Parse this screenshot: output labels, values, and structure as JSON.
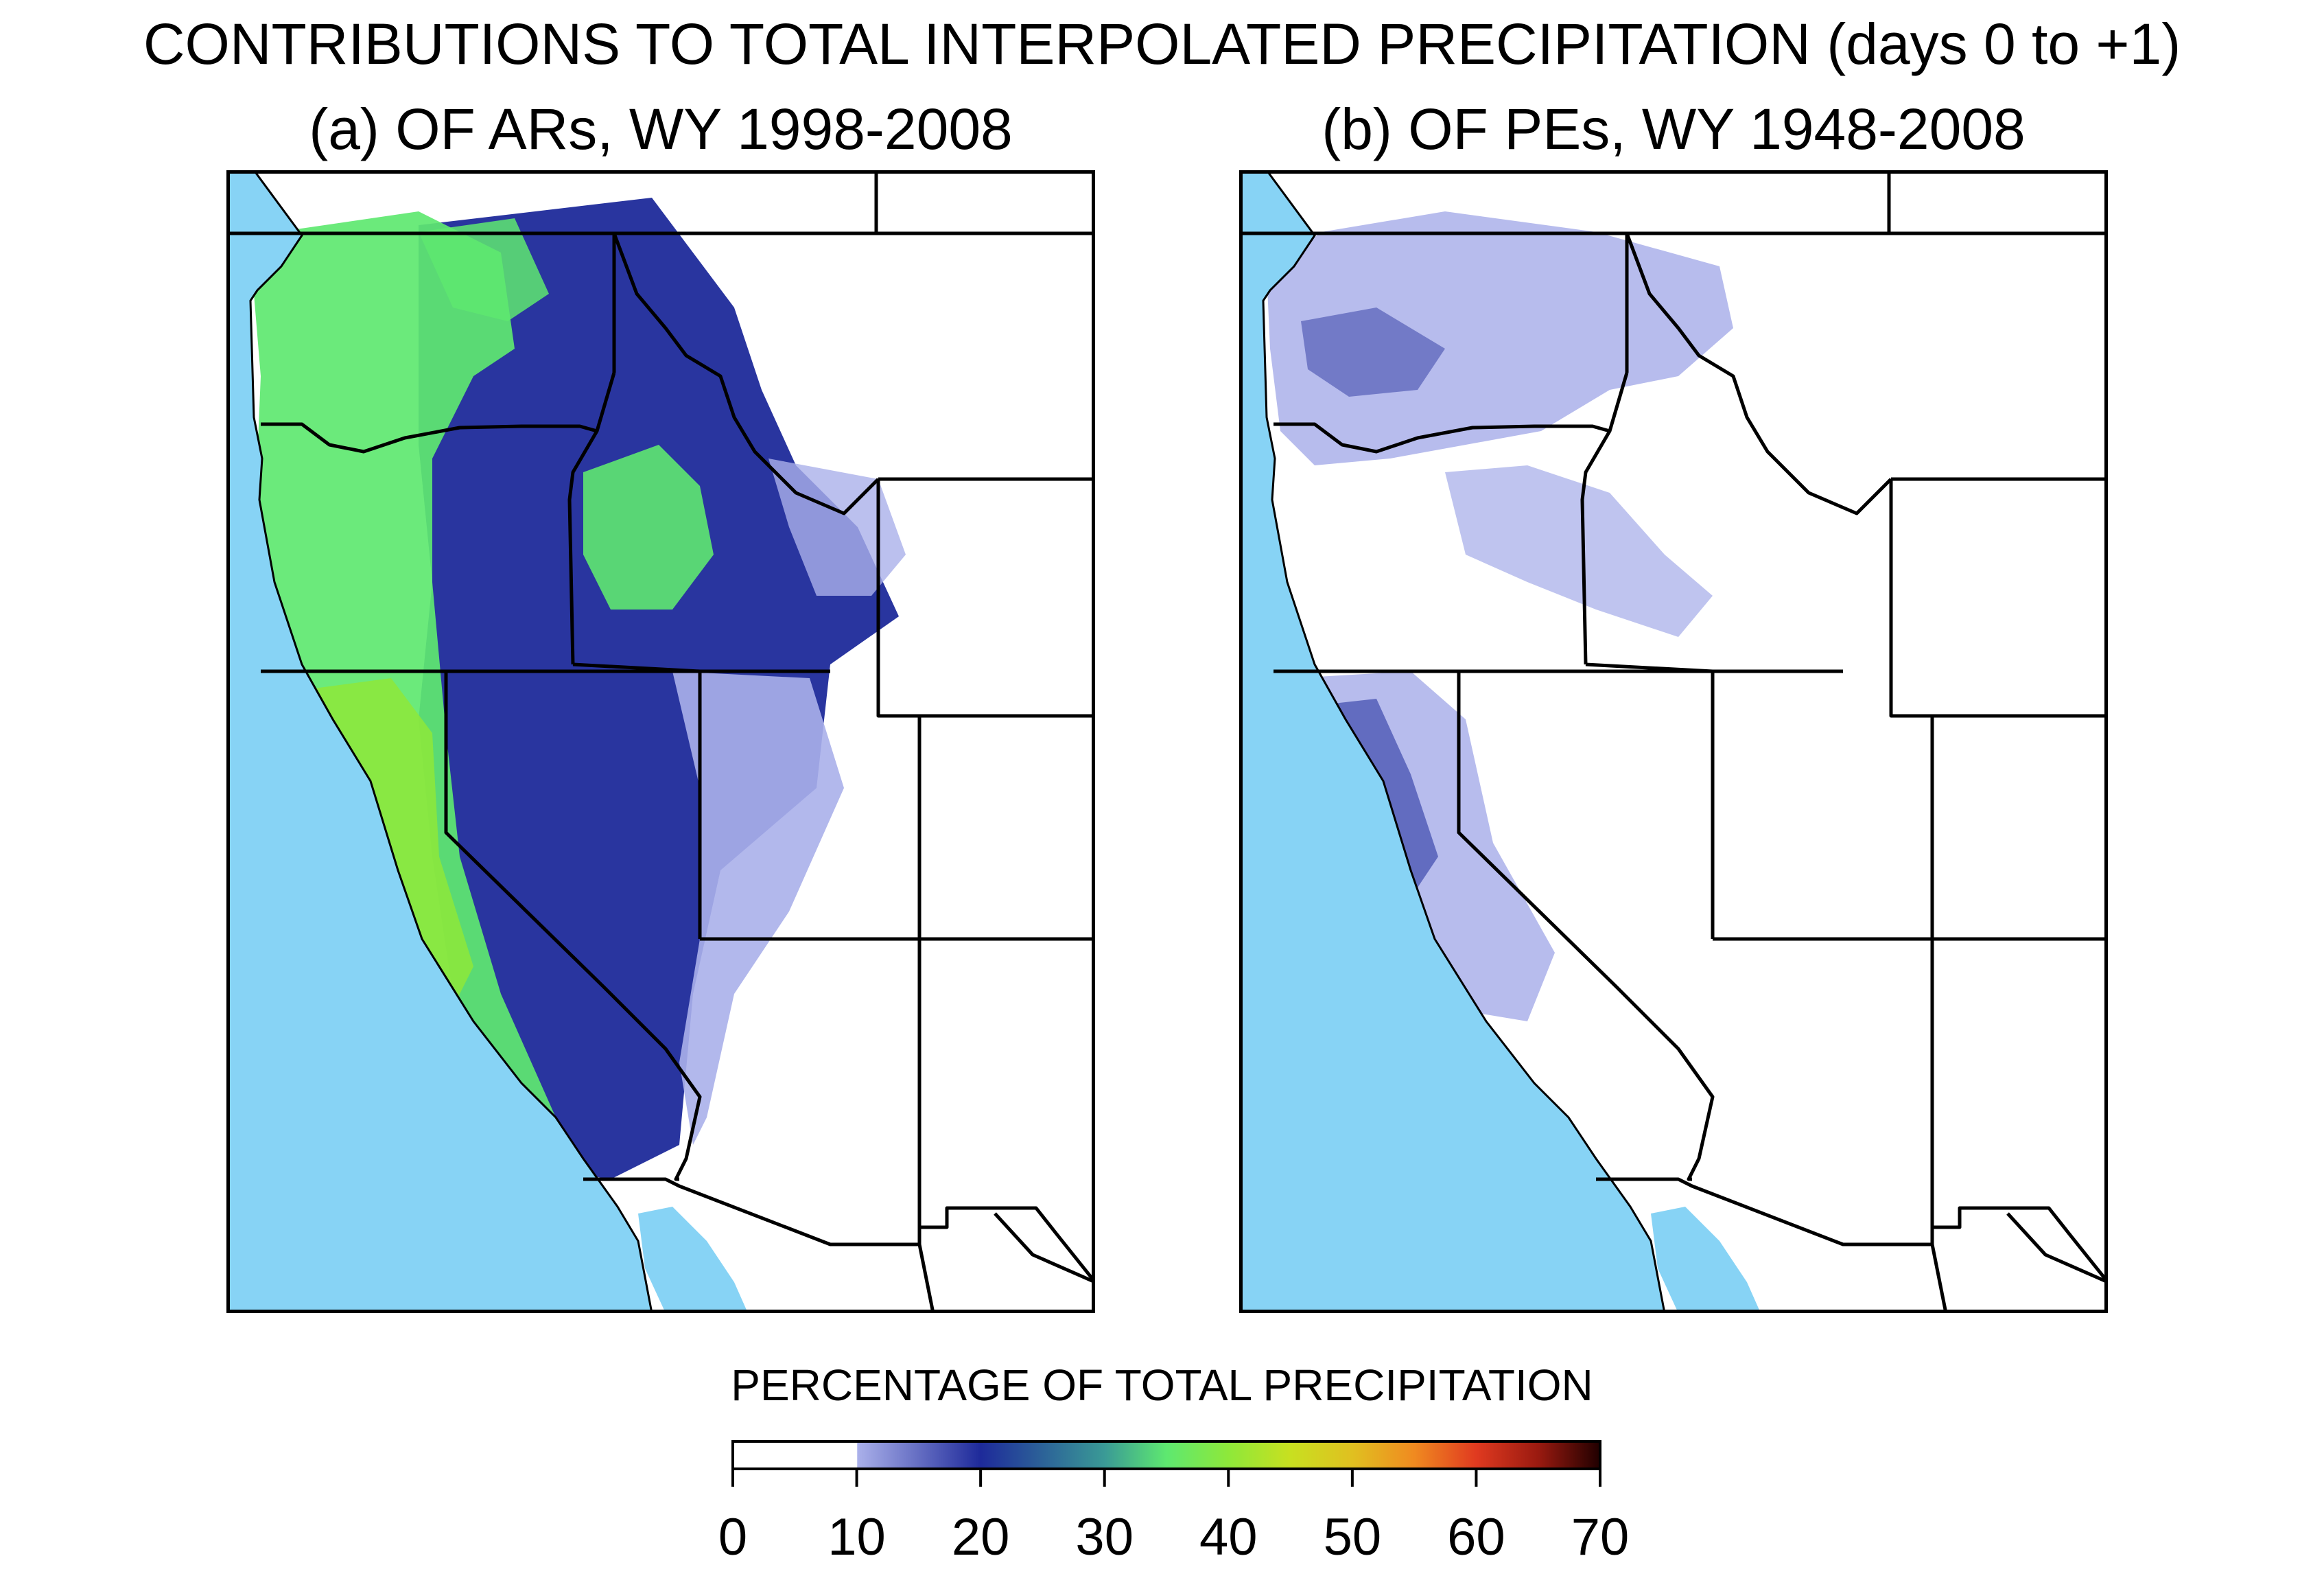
{
  "title": "CONTRIBUTIONS TO TOTAL INTERPOLATED PRECIPITATION (days 0 to +1)",
  "panels": [
    {
      "title": "(a) OF ARs, WY 1998-2008",
      "contribution_level": "high"
    },
    {
      "title": "(b) OF PEs, WY 1948-2008",
      "contribution_level": "low"
    }
  ],
  "colorbar": {
    "title": "PERCENTAGE OF TOTAL PRECIPITATION",
    "ticks": [
      "0",
      "10",
      "20",
      "30",
      "40",
      "50",
      "60",
      "70"
    ],
    "min": 0,
    "max": 70,
    "colors": {
      "c0": "#ffffff",
      "c10": "#aab0ea",
      "c20": "#1e2a9a",
      "c30": "#3a9a96",
      "c35": "#5ee870",
      "c40": "#8ee83a",
      "c45": "#c8e020",
      "c50": "#e0c020",
      "c55": "#f08a20",
      "c60": "#e03a20",
      "c65": "#9a1a10",
      "c70": "#200000"
    }
  },
  "map_colors": {
    "ocean": "#87d3f5",
    "land": "#ffffff",
    "border": "#000000"
  }
}
